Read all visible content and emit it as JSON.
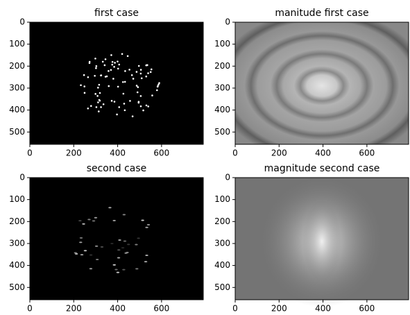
{
  "chart_data": [
    {
      "type": "image",
      "title": "first case",
      "xlim": [
        0,
        790
      ],
      "ylim": [
        556,
        0
      ],
      "xticks": [
        0,
        200,
        400,
        600
      ],
      "yticks": [
        0,
        100,
        200,
        300,
        400,
        500
      ]
    },
    {
      "type": "image",
      "title": "manitude first case",
      "xlim": [
        0,
        790
      ],
      "ylim": [
        556,
        0
      ],
      "xticks": [
        0,
        200,
        400,
        600
      ],
      "yticks": [
        0,
        100,
        200,
        300,
        400,
        500
      ]
    },
    {
      "type": "image",
      "title": "second case",
      "xlim": [
        0,
        790
      ],
      "ylim": [
        556,
        0
      ],
      "xticks": [
        0,
        200,
        400,
        600
      ],
      "yticks": [
        0,
        100,
        200,
        300,
        400,
        500
      ]
    },
    {
      "type": "image",
      "title": "magnitude second case",
      "xlim": [
        0,
        790
      ],
      "ylim": [
        556,
        0
      ],
      "xticks": [
        0,
        200,
        400,
        600
      ],
      "yticks": [
        0,
        100,
        200,
        300,
        400,
        500
      ]
    }
  ]
}
